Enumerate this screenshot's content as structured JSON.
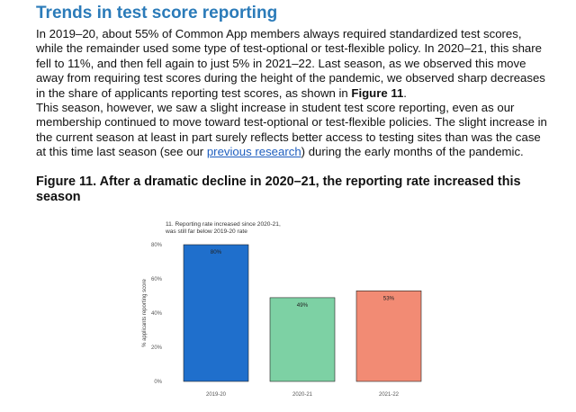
{
  "section": {
    "title": "Trends in test score reporting"
  },
  "paragraphs": {
    "p1": "In 2019–20, about 55% of Common App members always required standardized test scores, while the remainder used some type of test-optional or test-flexible policy. In 2020–21, this share fell to 11%, and then fell again to just 5% in 2021–22. Last season, as we observed this move away from requiring test scores during the height of the pandemic, we observed sharp decreases in the share of applicants reporting test scores, as shown in ",
    "p1_ref": "Figure 11",
    "p1_end": ".",
    "p2_start": "This season, however, we saw a slight increase in student test score reporting, even as our membership continued to move toward test-optional or test-flexible policies. The slight increase in the current season at least in part surely reflects better access to testing sites than was the case at this time last season (see our ",
    "p2_link": "previous research",
    "p2_end": ") during the early months of the pandemic."
  },
  "figure": {
    "title": "Figure 11. After a dramatic decline in 2020–21, the reporting rate increased this season"
  },
  "chart_data": {
    "type": "bar",
    "title_line1": "11. Reporting rate increased since 2020-21,",
    "title_line2": "was still far below 2019-20 rate",
    "ylabel": "% applicants reporting score",
    "ylim": [
      0,
      80
    ],
    "yticks": [
      0,
      20,
      40,
      60,
      80
    ],
    "ytick_labels": [
      "0%",
      "20%",
      "40%",
      "60%",
      "80%"
    ],
    "categories": [
      "2019-20",
      "2020-21",
      "2021-22"
    ],
    "values": [
      80,
      49,
      53
    ],
    "data_labels": [
      "80%",
      "49%",
      "53%"
    ],
    "colors": [
      "#1f6fcc",
      "#7dd1a4",
      "#f28b74"
    ],
    "grid": false,
    "legend": "none"
  }
}
